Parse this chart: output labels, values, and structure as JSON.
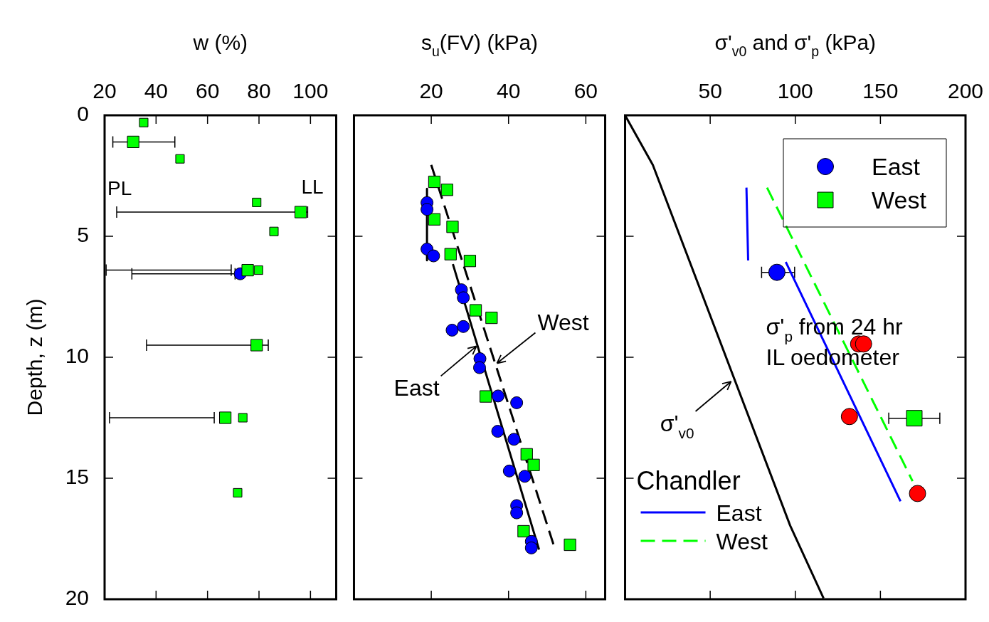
{
  "chart_data": [
    {
      "type": "scatter",
      "xlabel": "w (%)",
      "ylabel": "Depth, z (m)",
      "xlim": [
        20,
        110
      ],
      "xticks": [
        20,
        40,
        60,
        80,
        100
      ],
      "ylim": [
        20,
        0
      ],
      "yticks": [
        0,
        5,
        10,
        15,
        20
      ],
      "series": [
        {
          "color": "#00ff00",
          "marker": "square",
          "x": [
            31.1,
            96.2,
            75.6,
            79.1,
            66.9
          ],
          "values": [
            1.1,
            4.0,
            6.4,
            9.5,
            12.5
          ],
          "xerrors": [
            [
              23.2,
              47.3
            ],
            [
              24.7,
              98.9
            ],
            [
              20.6,
              69.2
            ],
            [
              36.3,
              83.6
            ],
            [
              21.9,
              62.6
            ]
          ]
        },
        {
          "color": "#00ff00",
          "marker": "square",
          "x": [
            35.2,
            49.3,
            79.1,
            85.8,
            79.8,
            73.7,
            71.7
          ],
          "values": [
            0.3,
            1.8,
            3.6,
            4.8,
            6.4,
            12.5,
            15.6
          ]
        },
        {
          "color": "#0000ff",
          "marker": "circle",
          "x": [
            72.7
          ],
          "values": [
            6.55
          ],
          "xerrors": [
            [
              30.6,
              70.7
            ]
          ]
        }
      ],
      "annotations": [
        "PL",
        "LL"
      ]
    },
    {
      "type": "scatter",
      "xlabel": "s$_{u}$(FV) (kPa)",
      "xlim": [
        0,
        65
      ],
      "xticks": [
        20,
        40,
        60
      ],
      "ylim": [
        20,
        0
      ],
      "yticks": [
        0,
        5,
        10,
        15,
        20
      ],
      "tick_labels": "x",
      "series": [
        {
          "color": "#0000ff",
          "marker": "circle",
          "x": [
            18.9,
            18.9,
            18.9,
            20.6,
            27.8,
            28.3,
            25.4,
            28.3,
            32.6,
            32.5,
            37.3,
            42.1,
            37.2,
            41.4,
            40.2,
            44.2,
            42.1,
            42.1,
            45.9,
            45.9
          ],
          "values": [
            3.61,
            3.89,
            5.53,
            5.81,
            7.21,
            7.54,
            8.88,
            8.73,
            10.06,
            10.43,
            11.6,
            11.88,
            13.06,
            13.39,
            14.7,
            14.92,
            16.13,
            16.43,
            17.61,
            17.88
          ]
        },
        {
          "color": "#00ff00",
          "marker": "square",
          "x": [
            20.8,
            24.1,
            20.8,
            25.5,
            25.0,
            30.0,
            31.5,
            35.6,
            34.1,
            44.7,
            46.5,
            43.9,
            55.9
          ],
          "values": [
            2.75,
            3.08,
            4.3,
            4.61,
            5.74,
            6.02,
            8.06,
            8.37,
            11.62,
            14.01,
            14.45,
            17.19,
            17.75
          ]
        },
        {
          "type": "line",
          "color": "#000000",
          "x": [
            18.9,
            18.9,
            null,
            25.6,
            47.9
          ],
          "values": [
            3.04,
            5.99,
            null,
            6.15,
            17.95
          ]
        },
        {
          "type": "line",
          "color": "#000000",
          "line_style": "dashed",
          "x": [
            20.0,
            51.7
          ],
          "values": [
            2.05,
            17.77
          ]
        }
      ],
      "annotations": [
        {
          "text": "East",
          "x": 31.7,
          "y": 9.54
        },
        {
          "text": "West",
          "x": 37.0,
          "y": 10.25
        }
      ]
    },
    {
      "type": "scatter",
      "xlabel": "σ'$_{v0}$ and σ'$_{p}$ (kPa)",
      "xlim": [
        0,
        200
      ],
      "xticks": [
        50,
        100,
        150,
        200
      ],
      "ylim": [
        20,
        0
      ],
      "yticks": [
        0,
        5,
        10,
        15,
        20
      ],
      "tick_labels": "x",
      "legend": "top right",
      "legend_title": "Chandler",
      "series": [
        {
          "name": "East",
          "color": "#0000ff",
          "marker": "circle",
          "x": [
            89.2
          ],
          "values": [
            6.49
          ],
          "xerrors": [
            [
              80.2,
              99.6
            ]
          ]
        },
        {
          "name": "West",
          "color": "#00ff00",
          "marker": "square",
          "x": [
            169.9
          ],
          "values": [
            12.52
          ],
          "xerrors": [
            [
              154.9,
              184.9
            ]
          ]
        },
        {
          "color": "#ff0000",
          "marker": "circle",
          "x": [
            137.2,
            140.1,
            131.8,
            171.8
          ],
          "values": [
            9.45,
            9.45,
            12.45,
            15.63
          ]
        },
        {
          "type": "line",
          "color": "#000000",
          "x": [
            0,
            16.3,
            97.0,
            116.6
          ],
          "values": [
            0,
            2.05,
            16.96,
            19.96
          ]
        },
        {
          "type": "line",
          "name": "East",
          "color": "#0000ff",
          "x": [
            71.3,
            72.3,
            null,
            94.4,
            161.8
          ],
          "values": [
            2.99,
            6.0,
            null,
            6.06,
            15.95
          ]
        },
        {
          "type": "line",
          "name": "West",
          "color": "#00ff00",
          "line_style": "dashed",
          "x": [
            83.4,
            168.9
          ],
          "values": [
            2.99,
            15.12
          ]
        }
      ],
      "annotations": [
        "σ'$_{p}$ from 24 hr IL oedometer",
        {
          "text": "σ'$_{v0}$",
          "x": 62.3,
          "y": 11.0
        }
      ]
    }
  ]
}
